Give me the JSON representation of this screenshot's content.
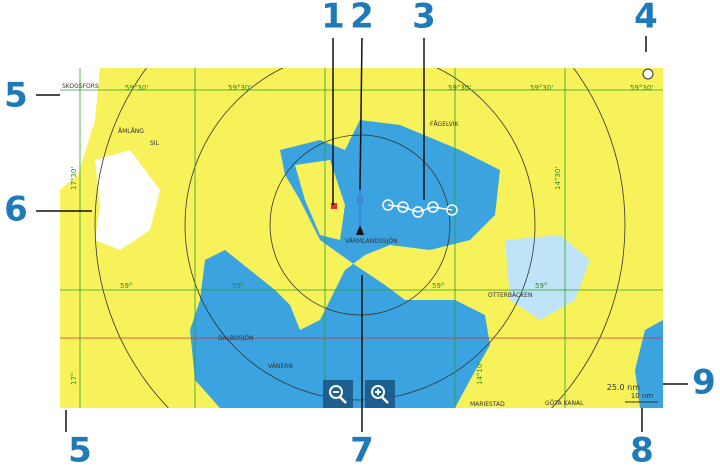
{
  "callouts": [
    "1",
    "2",
    "3",
    "4",
    "5",
    "6",
    "5",
    "7",
    "8",
    "9"
  ],
  "map": {
    "place_labels": [
      "SKOGSFORS",
      "ÅMLÅNG",
      "SIL",
      "FÅGELVIK",
      "VÄRMLANDSSJÖN",
      "OTTERBÄCKEN",
      "DALBOSJÖN",
      "VÄNERN",
      "MARIESTAD",
      "GÖTA KANAL"
    ],
    "grid_labels": [
      "59°30'",
      "59°30'",
      "59°30'",
      "59°30'",
      "59°30'",
      "59°",
      "59°",
      "59°",
      "59°",
      "17°30'",
      "14°30'",
      "17°",
      "14°10'"
    ],
    "range": "25.0 nm",
    "scale": "10 nm"
  }
}
